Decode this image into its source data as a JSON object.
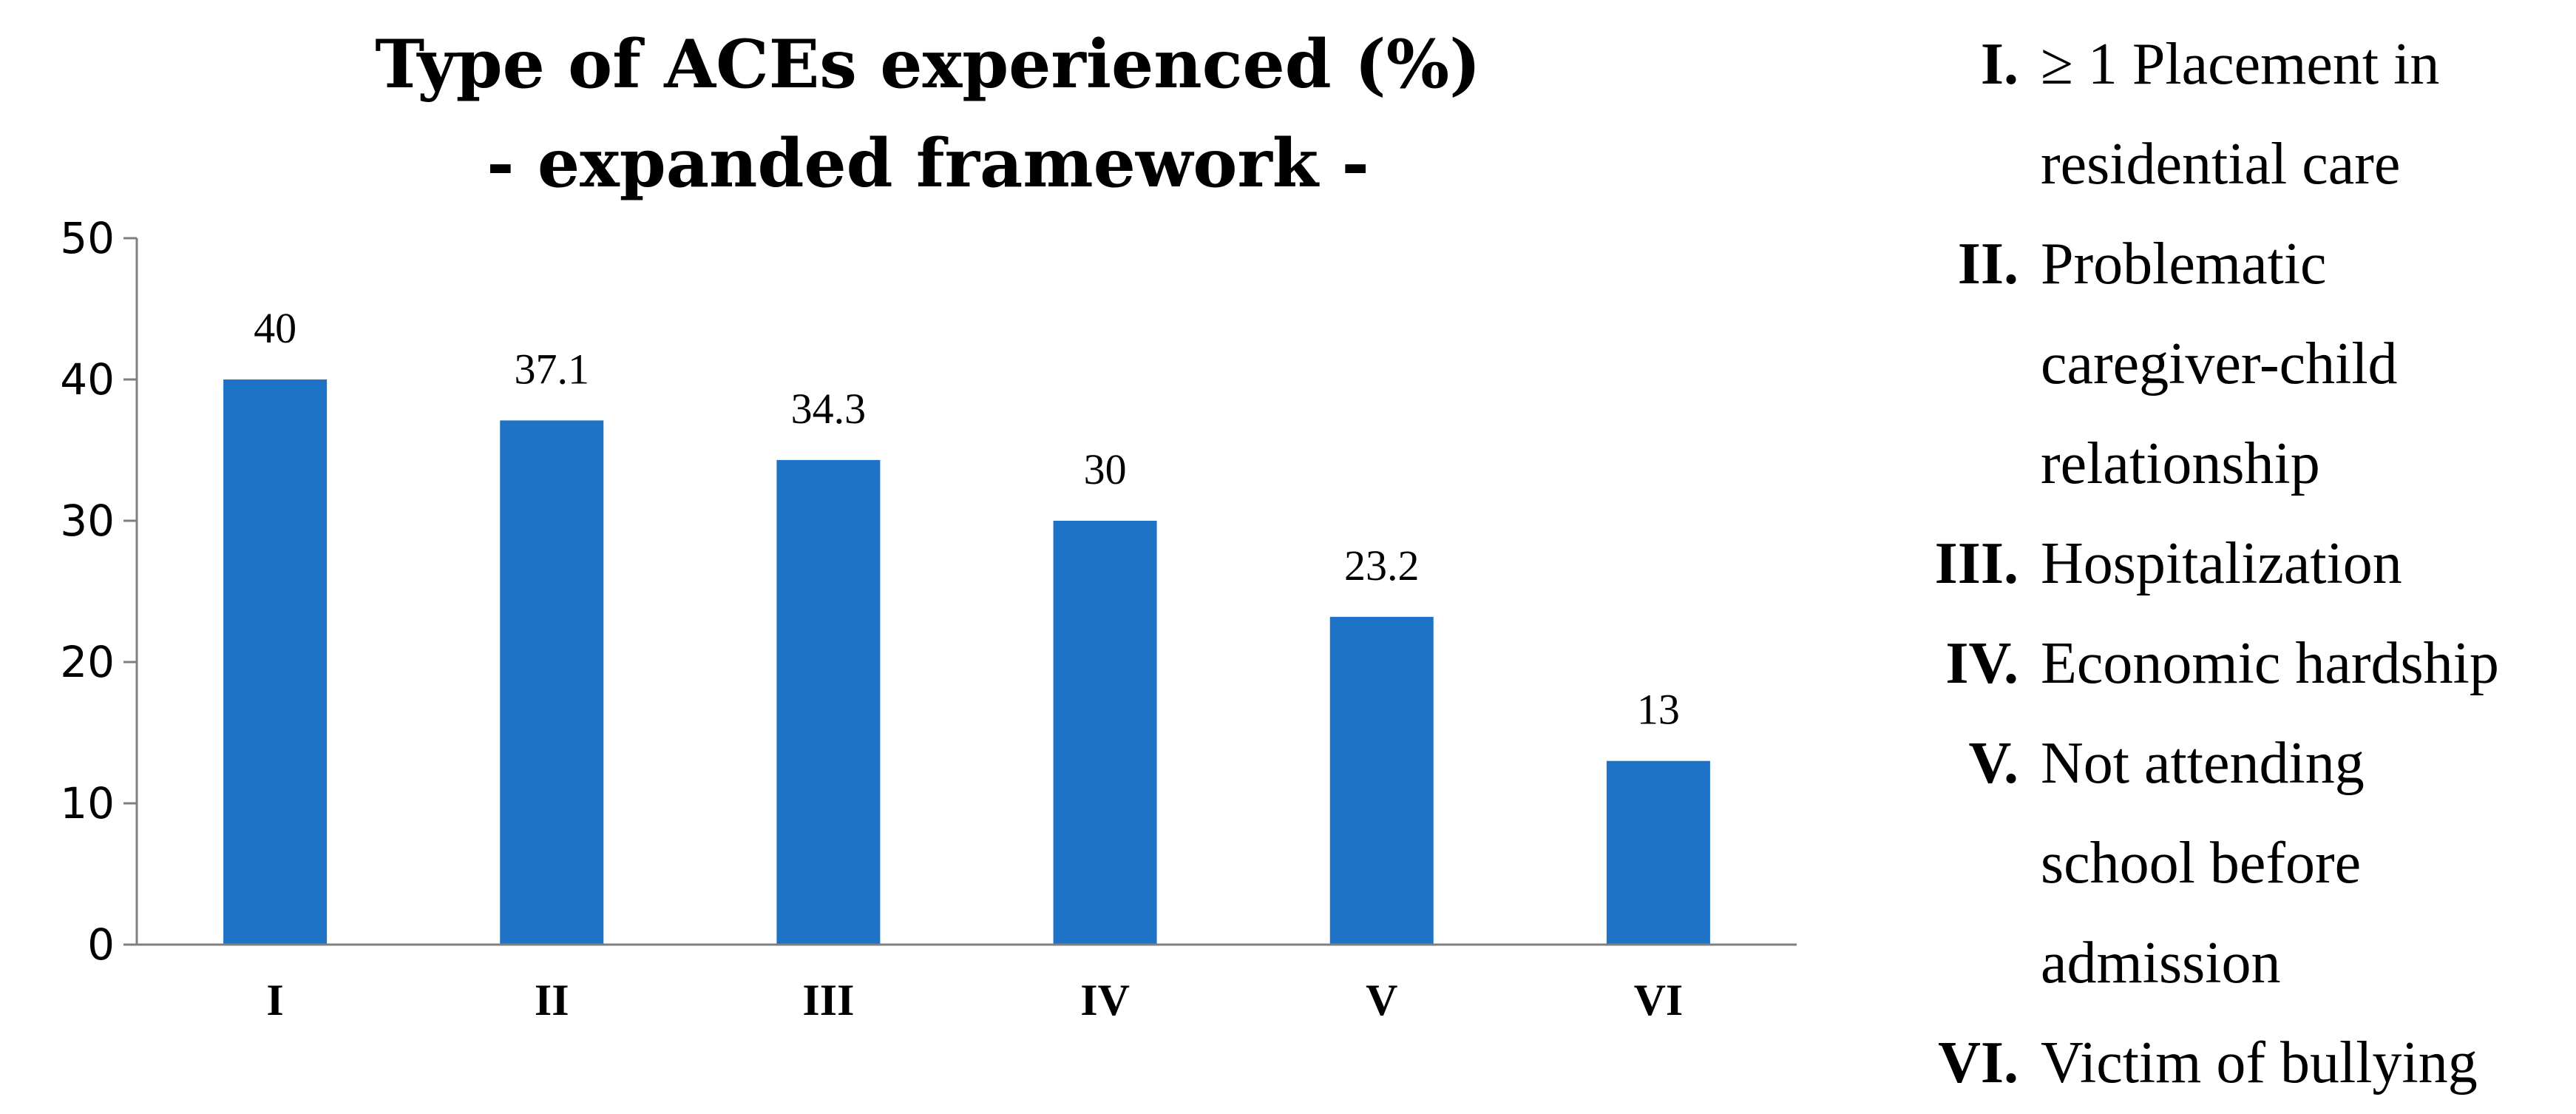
{
  "colors": {
    "bar": "#1f73c6",
    "axis": "#7f7f7f"
  },
  "chart_data": {
    "type": "bar",
    "title": [
      "Type of ACEs experienced (%)",
      "- expanded framework -"
    ],
    "categories": [
      "I",
      "II",
      "III",
      "IV",
      "V",
      "VI"
    ],
    "values": [
      40,
      37.1,
      34.3,
      30,
      23.2,
      13
    ],
    "data_labels": [
      "40",
      "37.1",
      "34.3",
      "30",
      "23.2",
      "13"
    ],
    "yticks": [
      "0",
      "10",
      "20",
      "30",
      "40",
      "50"
    ],
    "ylim": [
      0,
      50
    ],
    "xlabel": "",
    "ylabel": "",
    "grid": false,
    "legend_placement": "right",
    "legend": [
      {
        "num": "I.",
        "text": "≥ 1 Placement in\nresidential care"
      },
      {
        "num": "II.",
        "text": "Problematic\ncaregiver-child\nrelationship"
      },
      {
        "num": "III.",
        "text": "Hospitalization"
      },
      {
        "num": "IV.",
        "text": "Economic hardship"
      },
      {
        "num": "V.",
        "text": "Not attending\nschool before\nadmission"
      },
      {
        "num": "VI.",
        "text": "Victim of bullying"
      }
    ]
  }
}
